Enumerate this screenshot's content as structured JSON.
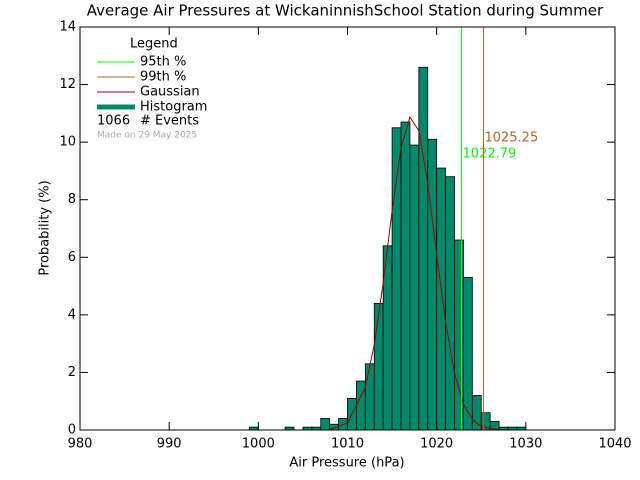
{
  "chart_data": {
    "type": "histogram",
    "title": "Average Air Pressures at WickaninnishSchool Station during Summer",
    "xlabel": "Air Pressure (hPa)",
    "ylabel": "Probability (%)",
    "legend_title": "Legend",
    "events": 1066,
    "events_label": "# Events",
    "made_on": "Made on 29 May 2025",
    "xlim": [
      980,
      1040
    ],
    "xticks": [
      980,
      990,
      1000,
      1010,
      1020,
      1030,
      1040
    ],
    "ylim": [
      0,
      14
    ],
    "yticks": [
      0,
      2,
      4,
      6,
      8,
      10,
      12,
      14
    ],
    "percentiles": [
      {
        "name": "95th %",
        "value": 1022.79,
        "color": "#00ff00"
      },
      {
        "name": "99th %",
        "value": 1025.25,
        "color": "#b8622a"
      }
    ],
    "gaussian": {
      "name": "Gaussian",
      "color": "#a00000",
      "x": [
        1008,
        1010,
        1012,
        1013,
        1014,
        1015,
        1016,
        1017,
        1018,
        1019,
        1020,
        1021,
        1022,
        1023,
        1024,
        1025,
        1027,
        1029
      ],
      "values": [
        0.02,
        0.24,
        1.48,
        2.96,
        5.11,
        7.62,
        9.8,
        10.87,
        10.4,
        8.58,
        6.1,
        3.75,
        1.98,
        0.91,
        0.36,
        0.12,
        0.01,
        0
      ]
    },
    "histogram": {
      "name": "Histogram",
      "color": "#008a6a",
      "bins": [
        999,
        1000,
        1001,
        1002,
        1003,
        1004,
        1005,
        1006,
        1007,
        1008,
        1009,
        1010,
        1011,
        1012,
        1013,
        1014,
        1015,
        1016,
        1017,
        1018,
        1019,
        1020,
        1021,
        1022,
        1023,
        1024,
        1025,
        1026,
        1027,
        1028,
        1029,
        1030
      ],
      "values": [
        0.1,
        0,
        0,
        0,
        0.1,
        0,
        0.1,
        0.1,
        0.4,
        0.2,
        0.4,
        1.1,
        1.7,
        2.3,
        4.4,
        6.4,
        10.5,
        10.7,
        9.9,
        12.6,
        10.1,
        9.1,
        8.8,
        6.6,
        5.3,
        1.2,
        0.6,
        0.3,
        0.1,
        0.1,
        0.1
      ]
    }
  }
}
